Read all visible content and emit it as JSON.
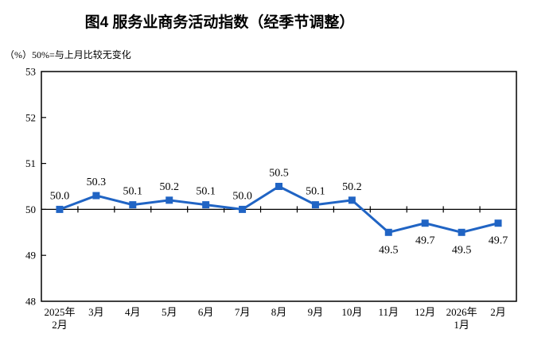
{
  "chart_data": {
    "type": "line",
    "title": "图4 服务业商务活动指数（经季节调整）",
    "unit_label": "（%）50%=与上月比较无变化",
    "series_name": "服务业商务活动指数",
    "categories": [
      [
        "2025年",
        "2月"
      ],
      [
        "3月"
      ],
      [
        "4月"
      ],
      [
        "5月"
      ],
      [
        "6月"
      ],
      [
        "7月"
      ],
      [
        "8月"
      ],
      [
        "9月"
      ],
      [
        "10月"
      ],
      [
        "11月"
      ],
      [
        "12月"
      ],
      [
        "2026年",
        "1月"
      ],
      [
        "2月"
      ]
    ],
    "values": [
      50.0,
      50.3,
      50.1,
      50.2,
      50.1,
      50.0,
      50.5,
      50.1,
      50.2,
      49.5,
      49.7,
      49.5,
      49.7
    ],
    "data_labels": [
      "50.0",
      "50.3",
      "50.1",
      "50.2",
      "50.1",
      "50.0",
      "50.5",
      "50.1",
      "50.2",
      "49.5",
      "49.7",
      "49.5",
      "49.7"
    ],
    "ylim": [
      48,
      53
    ],
    "yticks": [
      48,
      49,
      50,
      51,
      52,
      53
    ],
    "baseline_value": 50,
    "marker": "square",
    "grid": false,
    "legend": false,
    "colors": {
      "line": "#2064C4",
      "axis": "#000000",
      "text": "#000000"
    }
  }
}
